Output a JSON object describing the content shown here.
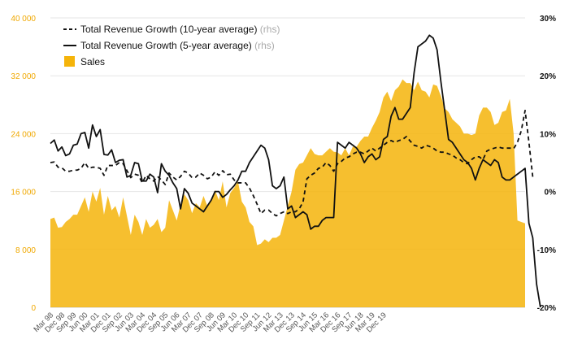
{
  "chart_data": {
    "type": "area",
    "title": "",
    "x_tick_labels": [
      "Mar 98",
      "Dec 98",
      "Sep 99",
      "Jun 00",
      "Mar 01",
      "Dec 01",
      "Sep 02",
      "Jun 03",
      "Mar 04",
      "Dec 04",
      "Sep 05",
      "Jun 06",
      "Mar 07",
      "Dec 07",
      "Sep 08",
      "Jun 09",
      "Mar 10",
      "Dec 10",
      "Sep 11",
      "Jun 12",
      "Mar 13",
      "Dec 13",
      "Sep 14",
      "Jun 15",
      "Mar 16",
      "Dec 16",
      "Sep 17",
      "Jun 18",
      "Mar 19",
      "Dec 19"
    ],
    "x_start": "Mar 98",
    "x_step": "quarter",
    "y_left": {
      "min": 0,
      "max": 40000,
      "ticks": [
        0,
        8000,
        16000,
        24000,
        32000,
        40000
      ],
      "tick_labels": [
        "0",
        "8 000",
        "16 000",
        "24 000",
        "32 000",
        "40 000"
      ]
    },
    "y_right": {
      "min": -20,
      "max": 30,
      "ticks": [
        -20,
        -10,
        0,
        10,
        20,
        30
      ],
      "tick_labels": [
        "-20%",
        "-10%",
        "0%",
        "10%",
        "20%",
        "30%"
      ]
    },
    "grid": true,
    "legend_position": "top-left",
    "colors": {
      "sales": "#f5b40a",
      "axis_left": "#f0a800",
      "lines": "#111111",
      "grid": "#e6e6e6"
    },
    "series": [
      {
        "name": "Total Revenue Growth (10-year average)",
        "unit": "(rhs)",
        "axis": "right",
        "style": "dashed",
        "values": [
          5.0,
          5.1,
          4.2,
          4.1,
          3.5,
          3.5,
          3.7,
          3.7,
          4.0,
          5.0,
          4.0,
          4.2,
          4.2,
          4.0,
          2.8,
          4.5,
          4.5,
          4.5,
          5.0,
          4.8,
          3.6,
          2.4,
          3.0,
          2.8,
          1.5,
          2.8,
          2.2,
          1.8,
          2.6,
          2.0,
          1.2,
          3.2,
          2.5,
          2.0,
          2.6,
          3.5,
          3.2,
          2.4,
          2.5,
          3.2,
          2.8,
          2.2,
          2.5,
          3.4,
          2.8,
          3.6,
          2.9,
          3.0,
          2.0,
          1.5,
          1.5,
          1.5,
          0.6,
          -0.7,
          -2.2,
          -3.8,
          -3.2,
          -3.2,
          -3.8,
          -4.2,
          -3.8,
          -3.5,
          -3.8,
          -3.5,
          -3.5,
          -3.0,
          -1.8,
          2.2,
          2.8,
          3.2,
          4.0,
          4.2,
          5.0,
          4.5,
          3.5,
          4.8,
          5.2,
          5.8,
          6.0,
          6.5,
          6.8,
          6.8,
          6.5,
          7.0,
          7.5,
          7.0,
          7.5,
          8.0,
          8.5,
          8.8,
          8.5,
          8.8,
          9.0,
          9.5,
          8.7,
          8.0,
          7.8,
          7.5,
          8.0,
          7.8,
          7.5,
          7.0,
          6.8,
          6.8,
          6.5,
          6.3,
          5.8,
          5.5,
          5.0,
          4.8,
          5.5,
          6.0,
          6.0,
          5.5,
          7.0,
          7.3,
          7.5,
          7.7,
          7.5,
          7.5,
          7.5,
          7.4,
          8.5,
          10.5,
          14.0,
          8.5,
          2.5
        ]
      },
      {
        "name": "Total Revenue Growth (5-year average)",
        "unit": "(rhs)",
        "axis": "right",
        "style": "solid",
        "values": [
          8.3,
          8.9,
          7.0,
          7.7,
          6.2,
          6.5,
          8.0,
          8.2,
          10.0,
          10.2,
          7.5,
          11.5,
          9.5,
          10.7,
          6.4,
          6.3,
          7.2,
          5.0,
          5.4,
          5.5,
          2.5,
          2.8,
          5.0,
          4.8,
          1.8,
          1.8,
          3.0,
          2.5,
          -0.2,
          4.8,
          3.5,
          2.8,
          1.5,
          0.5,
          -3.0,
          0.5,
          -0.3,
          -2.0,
          -2.5,
          -3.0,
          -3.5,
          -2.5,
          -1.5,
          0.0,
          0.0,
          -1.0,
          -0.5,
          0.3,
          1.0,
          2.0,
          3.5,
          3.5,
          5.0,
          6.0,
          7.0,
          8.0,
          7.5,
          5.5,
          1.0,
          0.5,
          1.0,
          2.5,
          -3.0,
          -2.5,
          -4.5,
          -4.0,
          -3.5,
          -4.0,
          -6.5,
          -6.0,
          -6.0,
          -5.0,
          -4.5,
          -4.5,
          -4.5,
          8.5,
          8.0,
          7.5,
          8.5,
          8.0,
          7.5,
          6.5,
          5.0,
          6.0,
          6.5,
          5.5,
          6.0,
          9.0,
          9.5,
          13.0,
          14.5,
          12.5,
          12.5,
          13.5,
          14.5,
          20.5,
          25.0,
          25.5,
          26.0,
          27.0,
          26.5,
          24.5,
          19.0,
          14.0,
          9.0,
          8.5,
          7.5,
          6.5,
          5.5,
          5.0,
          4.0,
          2.0,
          4.0,
          5.5,
          5.0,
          4.5,
          5.5,
          5.0,
          2.5,
          2.0,
          2.0,
          2.5,
          3.0,
          3.5,
          4.0,
          -5.5,
          -8.0,
          -16.0,
          -20.0
        ]
      },
      {
        "name": "Sales",
        "unit": "",
        "axis": "left",
        "style": "area",
        "values": [
          12200,
          12400,
          11000,
          11100,
          11800,
          12200,
          12800,
          12800,
          14000,
          15200,
          13200,
          16000,
          14600,
          16500,
          12800,
          15400,
          13400,
          14000,
          12400,
          15200,
          12600,
          10000,
          12800,
          11800,
          10000,
          12200,
          11000,
          11400,
          12200,
          10400,
          11000,
          14800,
          13400,
          12000,
          14200,
          15600,
          14800,
          13000,
          14400,
          13800,
          15400,
          14000,
          15000,
          16200,
          14800,
          17400,
          13800,
          15800,
          16500,
          17400,
          14600,
          13800,
          11800,
          11200,
          8600,
          8800,
          9400,
          9000,
          9600,
          9600,
          10000,
          12000,
          14000,
          16000,
          19000,
          19800,
          20000,
          21000,
          22000,
          21200,
          21000,
          21000,
          21500,
          22000,
          21500,
          21400,
          21000,
          22000,
          21000,
          22200,
          22200,
          23000,
          23600,
          23600,
          24800,
          25800,
          27000,
          29000,
          29800,
          28500,
          30000,
          30500,
          31500,
          31000,
          31000,
          30000,
          31200,
          30000,
          29800,
          29000,
          30800,
          30600,
          29200,
          27500,
          27000,
          26000,
          25500,
          25000,
          24000,
          24000,
          23800,
          24000,
          26500,
          27600,
          27600,
          27000,
          25200,
          25500,
          27000,
          27200,
          28800,
          24000,
          12000,
          11800,
          11600
        ]
      }
    ]
  }
}
